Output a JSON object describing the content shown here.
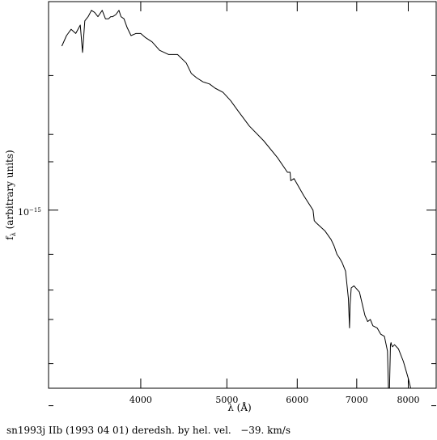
{
  "chart_data": {
    "type": "line",
    "xlabel": "λ (Å)",
    "ylabel": "f",
    "ylabel_sub": "λ",
    "ylabel_rest": " (arbitrary units)",
    "x_scale": "log",
    "y_scale": "log",
    "xlim": [
      3150,
      8600
    ],
    "x_ticks": [
      4000,
      5000,
      6000,
      7000,
      8000
    ],
    "y_tick_label_base": "10",
    "y_tick_label_exp": "−15",
    "grid": false,
    "legend": "none",
    "caption": "sn1993j IIb (1993 04 01) deredsh. by hel. vel.   −39. km/s",
    "line_color": "#000000",
    "series": [
      {
        "x": [
          3260,
          3300,
          3340,
          3380,
          3420,
          3440,
          3460,
          3490,
          3520,
          3550,
          3580,
          3620,
          3650,
          3680,
          3700,
          3720,
          3750,
          3780,
          3800,
          3830,
          3860,
          3900,
          3950,
          4000,
          4050,
          4120,
          4200,
          4300,
          4400,
          4500,
          4560,
          4620,
          4700,
          4780,
          4850,
          4950,
          5050,
          5150,
          5300,
          5500,
          5700,
          5850,
          5890,
          5900,
          5950,
          6100,
          6250,
          6270,
          6300,
          6450,
          6550,
          6600,
          6650,
          6700,
          6740,
          6800,
          6850,
          6870,
          6880,
          6900,
          6950,
          7050,
          7150,
          7200,
          7250,
          7300,
          7380,
          7450,
          7520,
          7580,
          7600,
          7620,
          7640,
          7650,
          7660,
          7680,
          7720,
          7800,
          7900,
          8000,
          8050,
          8100,
          8150
        ],
        "y": [
          0.0,
          0.05,
          0.08,
          0.06,
          0.1,
          -0.03,
          0.12,
          0.14,
          0.17,
          0.16,
          0.14,
          0.17,
          0.13,
          0.13,
          0.14,
          0.14,
          0.15,
          0.17,
          0.14,
          0.13,
          0.09,
          0.05,
          0.06,
          0.06,
          0.04,
          0.02,
          -0.02,
          -0.04,
          -0.04,
          -0.08,
          -0.13,
          -0.15,
          -0.17,
          -0.18,
          -0.2,
          -0.22,
          -0.26,
          -0.31,
          -0.38,
          -0.45,
          -0.53,
          -0.6,
          -0.6,
          -0.64,
          -0.63,
          -0.71,
          -0.78,
          -0.83,
          -0.84,
          -0.88,
          -0.92,
          -0.95,
          -0.99,
          -1.01,
          -1.03,
          -1.07,
          -1.2,
          -1.34,
          -1.23,
          -1.15,
          -1.14,
          -1.17,
          -1.28,
          -1.31,
          -1.3,
          -1.33,
          -1.34,
          -1.37,
          -1.38,
          -1.45,
          -1.65,
          -1.85,
          -1.42,
          -1.41,
          -1.42,
          -1.43,
          -1.42,
          -1.44,
          -1.5,
          -1.58,
          -1.69,
          -1.74,
          -1.72
        ]
      }
    ]
  }
}
